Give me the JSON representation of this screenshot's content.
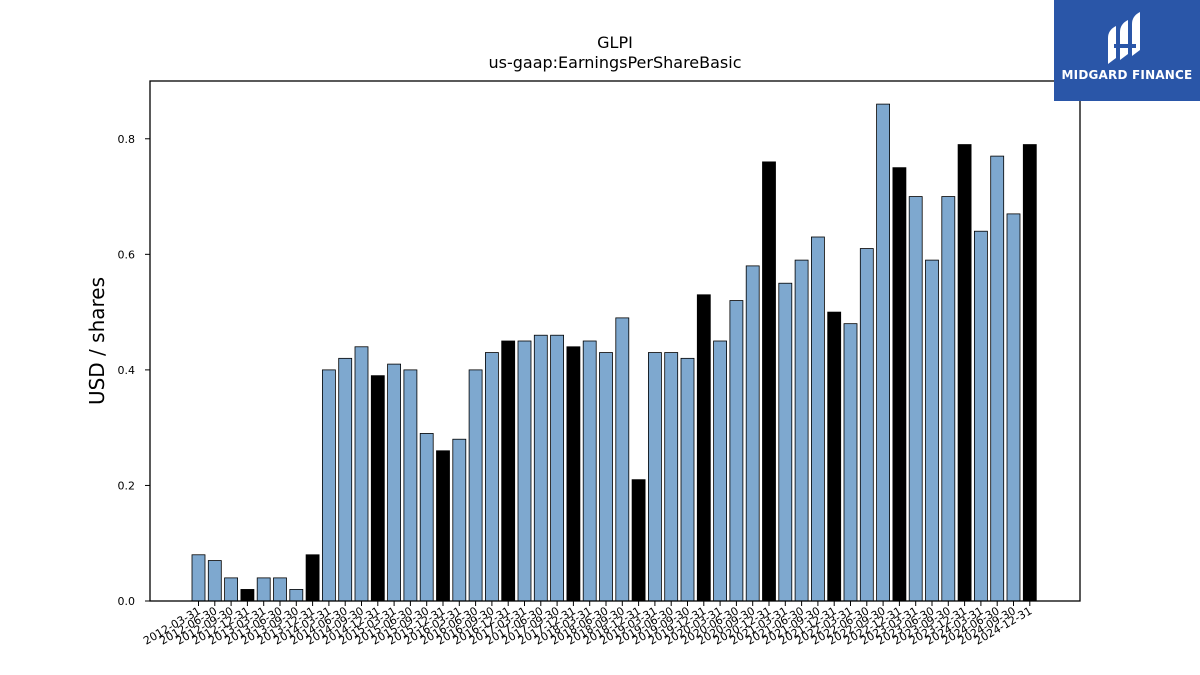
{
  "chart_data": {
    "type": "bar",
    "title": "GLPI",
    "subtitle": "us-gaap:EarningsPerShareBasic",
    "xlabel": "",
    "ylabel": "USD / shares",
    "ylim": [
      0,
      0.9
    ],
    "yticks": [
      "0.0",
      "0.2",
      "0.4",
      "0.6",
      "0.8"
    ],
    "grid": false,
    "categories": [
      "2012-03-31",
      "2012-06-30",
      "2012-09-30",
      "2012-12-31",
      "2013-03-31",
      "2013-06-30",
      "2013-09-30",
      "2013-12-31",
      "2014-03-31",
      "2014-06-30",
      "2014-09-30",
      "2014-12-31",
      "2015-03-31",
      "2015-06-30",
      "2015-09-30",
      "2015-12-31",
      "2016-03-31",
      "2016-06-30",
      "2016-09-30",
      "2016-12-31",
      "2017-03-31",
      "2017-06-30",
      "2017-09-30",
      "2017-12-31",
      "2018-03-31",
      "2018-06-30",
      "2018-09-30",
      "2018-12-31",
      "2019-03-31",
      "2019-06-30",
      "2019-09-30",
      "2019-12-31",
      "2020-03-31",
      "2020-06-30",
      "2020-09-30",
      "2020-12-31",
      "2021-03-31",
      "2021-06-30",
      "2021-09-30",
      "2021-12-31",
      "2022-03-31",
      "2022-06-30",
      "2022-09-30",
      "2022-12-31",
      "2023-03-31",
      "2023-06-30",
      "2023-09-30",
      "2023-12-31",
      "2024-03-31",
      "2024-06-30",
      "2024-09-30",
      "2024-12-31"
    ],
    "values": [
      0.08,
      0.07,
      0.04,
      0.02,
      0.04,
      0.04,
      0.02,
      0.08,
      0.4,
      0.42,
      0.44,
      0.39,
      0.41,
      0.4,
      0.29,
      0.26,
      0.28,
      0.4,
      0.43,
      0.45,
      0.45,
      0.46,
      0.46,
      0.44,
      0.45,
      0.43,
      0.49,
      0.21,
      0.43,
      0.43,
      0.42,
      0.53,
      0.45,
      0.52,
      0.58,
      0.76,
      0.55,
      0.59,
      0.63,
      0.5,
      0.48,
      0.61,
      0.86,
      0.75,
      0.7,
      0.59,
      0.7,
      0.79,
      0.64,
      0.77,
      0.67,
      0.79
    ],
    "colors": {
      "quarter": "#7ea8cf",
      "year_end": "#000000",
      "edge": "#000000"
    }
  },
  "logo": {
    "text": "MIDGARD FINANCE",
    "background": "#2a56a8"
  }
}
